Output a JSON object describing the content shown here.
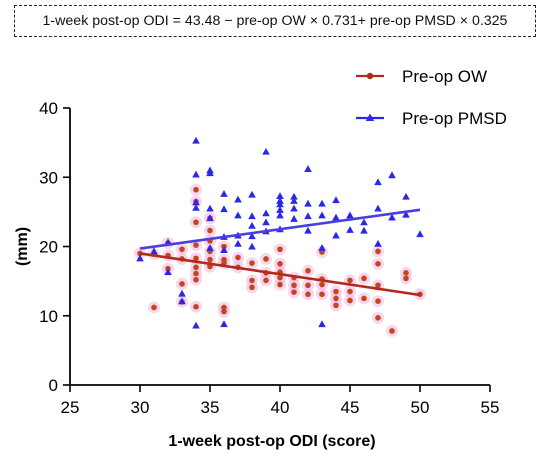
{
  "equation": "1-week post-op ODI = 43.48 − pre-op OW × 0.731+ pre-op PMSD × 0.325",
  "chart_data": {
    "type": "scatter",
    "title": "",
    "xlabel": "1-week post-op ODI (score)",
    "ylabel": "(mm)",
    "xlim": [
      25,
      55
    ],
    "ylim": [
      0,
      40
    ],
    "xticks": [
      25,
      30,
      35,
      40,
      45,
      50,
      55
    ],
    "yticks": [
      0,
      10,
      20,
      30,
      40
    ],
    "grid": false,
    "legend_position": "top-right",
    "series": [
      {
        "name": "Pre-op OW",
        "color": "#b22a1a",
        "marker": "circle",
        "fit_line": [
          [
            30,
            19.0
          ],
          [
            50,
            13.0
          ]
        ],
        "points": [
          [
            30,
            19.0
          ],
          [
            31,
            11.2
          ],
          [
            31,
            18.9
          ],
          [
            32,
            20.5
          ],
          [
            32,
            18.7
          ],
          [
            32,
            16.8
          ],
          [
            33,
            19.6
          ],
          [
            33,
            18.2
          ],
          [
            33,
            14.6
          ],
          [
            33,
            12.0
          ],
          [
            34,
            28.2
          ],
          [
            34,
            26.5
          ],
          [
            34,
            23.5
          ],
          [
            34,
            20.2
          ],
          [
            34,
            18.3
          ],
          [
            34,
            17.0
          ],
          [
            34,
            16.1
          ],
          [
            34,
            15.2
          ],
          [
            34,
            11.3
          ],
          [
            35,
            24.1
          ],
          [
            35,
            22.3
          ],
          [
            35,
            20.8
          ],
          [
            35,
            19.3
          ],
          [
            35,
            18.1
          ],
          [
            35,
            17.1
          ],
          [
            36,
            20.0
          ],
          [
            36,
            18.1
          ],
          [
            36,
            17.6
          ],
          [
            36,
            11.2
          ],
          [
            36,
            10.6
          ],
          [
            37,
            18.4
          ],
          [
            37,
            17.0
          ],
          [
            38,
            17.6
          ],
          [
            38,
            15.1
          ],
          [
            38,
            14.1
          ],
          [
            39,
            18.2
          ],
          [
            39,
            16.2
          ],
          [
            39,
            15.1
          ],
          [
            40,
            17.5
          ],
          [
            40,
            16.3
          ],
          [
            40,
            15.5
          ],
          [
            40,
            14.5
          ],
          [
            40,
            19.6
          ],
          [
            41,
            15.5
          ],
          [
            41,
            14.4
          ],
          [
            41,
            13.4
          ],
          [
            42,
            16.5
          ],
          [
            42,
            14.4
          ],
          [
            42,
            13.1
          ],
          [
            43,
            19.2
          ],
          [
            43,
            15.3
          ],
          [
            43,
            14.5
          ],
          [
            43,
            13.1
          ],
          [
            44,
            13.5
          ],
          [
            44,
            12.5
          ],
          [
            44,
            11.5
          ],
          [
            45,
            15.1
          ],
          [
            45,
            13.5
          ],
          [
            45,
            12.2
          ],
          [
            46,
            15.4
          ],
          [
            46,
            12.5
          ],
          [
            47,
            19.3
          ],
          [
            47,
            17.5
          ],
          [
            47,
            14.4
          ],
          [
            47,
            12.1
          ],
          [
            47,
            9.7
          ],
          [
            48,
            7.8
          ],
          [
            49,
            16.2
          ],
          [
            49,
            15.4
          ],
          [
            50,
            13.1
          ]
        ]
      },
      {
        "name": "Pre-op PMSD",
        "color": "#2a2ae6",
        "marker": "triangle",
        "fit_line": [
          [
            30,
            19.7
          ],
          [
            50,
            25.3
          ]
        ],
        "points": [
          [
            30,
            18.3
          ],
          [
            31,
            19.3
          ],
          [
            32,
            20.6
          ],
          [
            32,
            16.3
          ],
          [
            33,
            13.2
          ],
          [
            33,
            12.1
          ],
          [
            34,
            35.3
          ],
          [
            34,
            30.4
          ],
          [
            34,
            26.4
          ],
          [
            34,
            25.6
          ],
          [
            34,
            8.6
          ],
          [
            35,
            31.0
          ],
          [
            35,
            30.6
          ],
          [
            35,
            25.5
          ],
          [
            35,
            24.1
          ],
          [
            35,
            19.8
          ],
          [
            36,
            27.6
          ],
          [
            36,
            25.4
          ],
          [
            36,
            21.4
          ],
          [
            36,
            19.5
          ],
          [
            36,
            8.8
          ],
          [
            37,
            26.8
          ],
          [
            37,
            24.5
          ],
          [
            37,
            21.6
          ],
          [
            37,
            20.4
          ],
          [
            38,
            27.5
          ],
          [
            38,
            24.4
          ],
          [
            38,
            23.0
          ],
          [
            38,
            21.5
          ],
          [
            38,
            20.0
          ],
          [
            39,
            33.7
          ],
          [
            39,
            24.8
          ],
          [
            39,
            23.5
          ],
          [
            39,
            22.2
          ],
          [
            40,
            27.3
          ],
          [
            40,
            26.6
          ],
          [
            40,
            26.1
          ],
          [
            40,
            25.3
          ],
          [
            40,
            24.5
          ],
          [
            40,
            22.5
          ],
          [
            41,
            27.2
          ],
          [
            41,
            26.6
          ],
          [
            41,
            25.5
          ],
          [
            41,
            24.0
          ],
          [
            42,
            31.2
          ],
          [
            42,
            26.2
          ],
          [
            42,
            24.4
          ],
          [
            42,
            22.3
          ],
          [
            43,
            26.2
          ],
          [
            43,
            24.5
          ],
          [
            43,
            19.8
          ],
          [
            43,
            8.8
          ],
          [
            44,
            26.7
          ],
          [
            44,
            24.2
          ],
          [
            44,
            21.6
          ],
          [
            45,
            24.5
          ],
          [
            45,
            22.4
          ],
          [
            46,
            23.5
          ],
          [
            46,
            22.3
          ],
          [
            47,
            29.3
          ],
          [
            47,
            25.5
          ],
          [
            47,
            20.4
          ],
          [
            48,
            30.3
          ],
          [
            48,
            24.2
          ],
          [
            49,
            27.2
          ],
          [
            49,
            24.6
          ],
          [
            50,
            21.8
          ]
        ]
      }
    ]
  }
}
